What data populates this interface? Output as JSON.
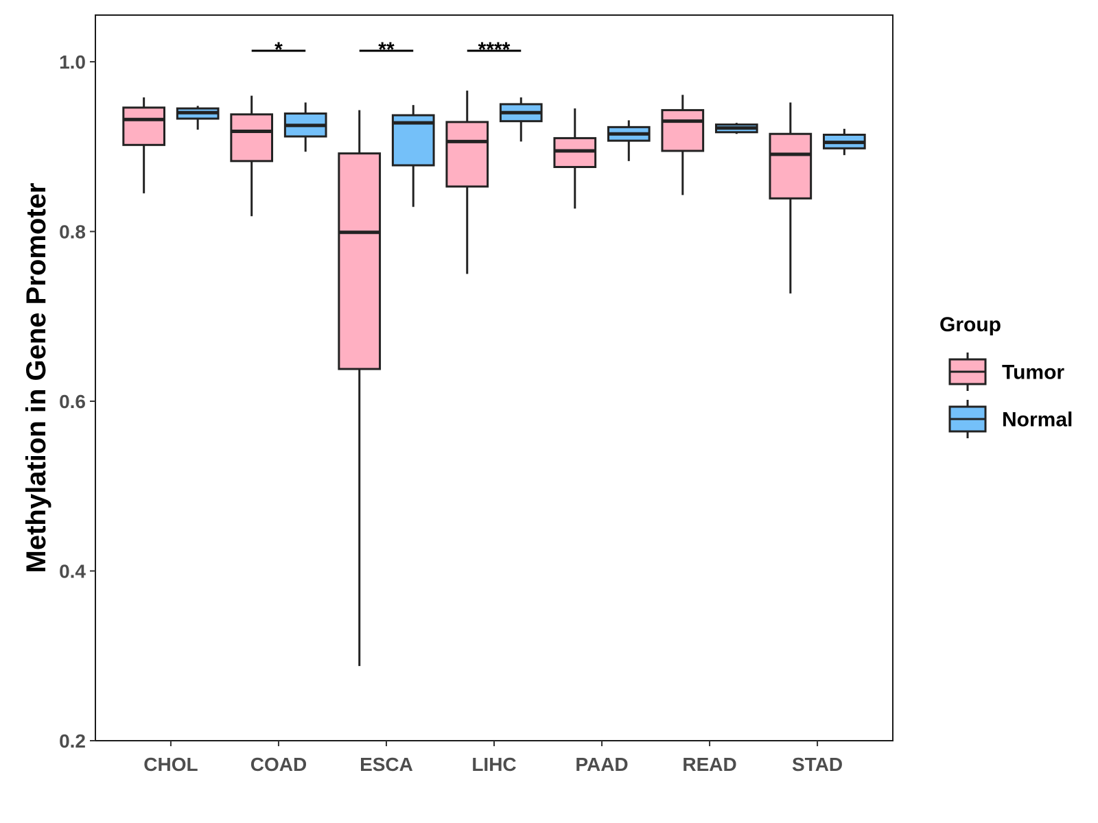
{
  "chart_data": {
    "type": "boxplot",
    "title": "",
    "xlabel": "",
    "ylabel": "Methylation in Gene Promoter",
    "ylim": [
      0.2,
      1.055
    ],
    "yticks": [
      0.2,
      0.4,
      0.6,
      0.8,
      1.0
    ],
    "ytick_labels": [
      "0.2",
      "0.4",
      "0.6",
      "0.8",
      "1.0"
    ],
    "categories": [
      "CHOL",
      "COAD",
      "ESCA",
      "LIHC",
      "PAAD",
      "READ",
      "STAD"
    ],
    "legend": {
      "title": "Group",
      "position": "right",
      "entries": [
        {
          "name": "Tumor",
          "color": "#FFB0C2"
        },
        {
          "name": "Normal",
          "color": "#74C0F9"
        }
      ]
    },
    "series": [
      {
        "name": "Tumor",
        "color": "#FFB0C2",
        "boxes": [
          {
            "category": "CHOL",
            "min": 0.845,
            "q1": 0.902,
            "median": 0.932,
            "q3": 0.946,
            "max": 0.958
          },
          {
            "category": "COAD",
            "min": 0.818,
            "q1": 0.883,
            "median": 0.918,
            "q3": 0.938,
            "max": 0.96
          },
          {
            "category": "ESCA",
            "min": 0.288,
            "q1": 0.638,
            "median": 0.799,
            "q3": 0.892,
            "max": 0.943
          },
          {
            "category": "LIHC",
            "min": 0.75,
            "q1": 0.853,
            "median": 0.906,
            "q3": 0.929,
            "max": 0.966
          },
          {
            "category": "PAAD",
            "min": 0.827,
            "q1": 0.876,
            "median": 0.895,
            "q3": 0.91,
            "max": 0.945
          },
          {
            "category": "READ",
            "min": 0.843,
            "q1": 0.895,
            "median": 0.93,
            "q3": 0.943,
            "max": 0.961
          },
          {
            "category": "STAD",
            "min": 0.727,
            "q1": 0.839,
            "median": 0.891,
            "q3": 0.915,
            "max": 0.952
          }
        ]
      },
      {
        "name": "Normal",
        "color": "#74C0F9",
        "boxes": [
          {
            "category": "CHOL",
            "min": 0.92,
            "q1": 0.933,
            "median": 0.94,
            "q3": 0.945,
            "max": 0.948
          },
          {
            "category": "COAD",
            "min": 0.894,
            "q1": 0.912,
            "median": 0.925,
            "q3": 0.939,
            "max": 0.952
          },
          {
            "category": "ESCA",
            "min": 0.829,
            "q1": 0.878,
            "median": 0.928,
            "q3": 0.937,
            "max": 0.949
          },
          {
            "category": "LIHC",
            "min": 0.906,
            "q1": 0.93,
            "median": 0.94,
            "q3": 0.95,
            "max": 0.958
          },
          {
            "category": "PAAD",
            "min": 0.883,
            "q1": 0.907,
            "median": 0.915,
            "q3": 0.923,
            "max": 0.931
          },
          {
            "category": "READ",
            "min": 0.915,
            "q1": 0.917,
            "median": 0.922,
            "q3": 0.926,
            "max": 0.928
          },
          {
            "category": "STAD",
            "min": 0.89,
            "q1": 0.898,
            "median": 0.905,
            "q3": 0.914,
            "max": 0.921
          }
        ]
      }
    ],
    "annotations": [
      {
        "category": "COAD",
        "text": "*",
        "y": 1.013
      },
      {
        "category": "ESCA",
        "text": "**",
        "y": 1.013
      },
      {
        "category": "LIHC",
        "text": "****",
        "y": 1.013
      }
    ]
  }
}
